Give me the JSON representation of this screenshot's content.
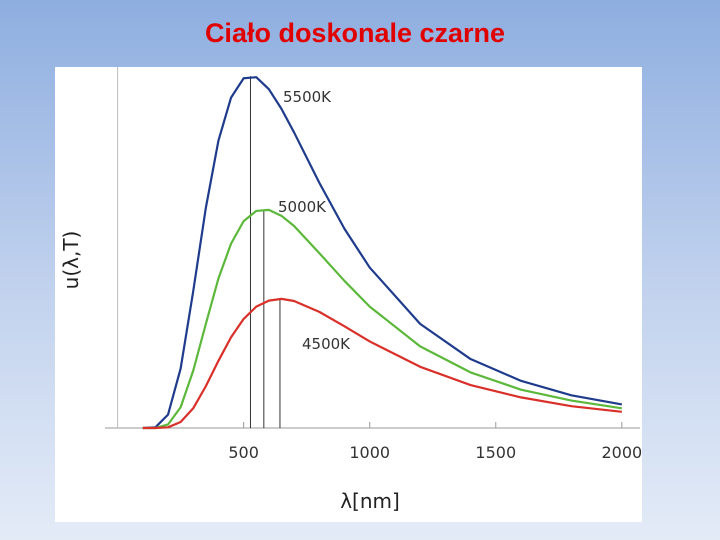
{
  "chart_data": {
    "type": "line",
    "title": "Ciało doskonale czarne",
    "x_label": "λ[nm]",
    "y_label": "u(λ,T)",
    "x": [
      100,
      150,
      200,
      250,
      300,
      350,
      400,
      450,
      500,
      550,
      600,
      650,
      700,
      800,
      900,
      1000,
      1200,
      1400,
      1600,
      1800,
      2000
    ],
    "series": [
      {
        "name": "5500K",
        "color": "#1f3b8c",
        "peak": [
          527,
          1
        ],
        "values": [
          0,
          0.002,
          0.038,
          0.169,
          0.389,
          0.626,
          0.817,
          0.939,
          0.994,
          0.997,
          0.963,
          0.907,
          0.84,
          0.697,
          0.566,
          0.456,
          0.296,
          0.196,
          0.134,
          0.093,
          0.067
        ]
      },
      {
        "name": "5000K",
        "color": "#5cb83a",
        "peak": [
          580,
          0.621
        ],
        "values": [
          0,
          0,
          0.01,
          0.059,
          0.163,
          0.296,
          0.425,
          0.524,
          0.588,
          0.617,
          0.62,
          0.603,
          0.574,
          0.497,
          0.418,
          0.345,
          0.232,
          0.158,
          0.109,
          0.078,
          0.056
        ]
      },
      {
        "name": "4500K",
        "color": "#d9302a",
        "peak": [
          644,
          0.367
        ],
        "values": [
          0,
          0,
          0.002,
          0.017,
          0.056,
          0.119,
          0.191,
          0.258,
          0.31,
          0.345,
          0.362,
          0.367,
          0.361,
          0.33,
          0.289,
          0.246,
          0.174,
          0.122,
          0.087,
          0.062,
          0.046
        ]
      }
    ],
    "xlim": [
      -50,
      2080
    ],
    "xticks": [
      500,
      1000,
      1500,
      2000
    ],
    "ylim": [
      0,
      1.026
    ]
  }
}
